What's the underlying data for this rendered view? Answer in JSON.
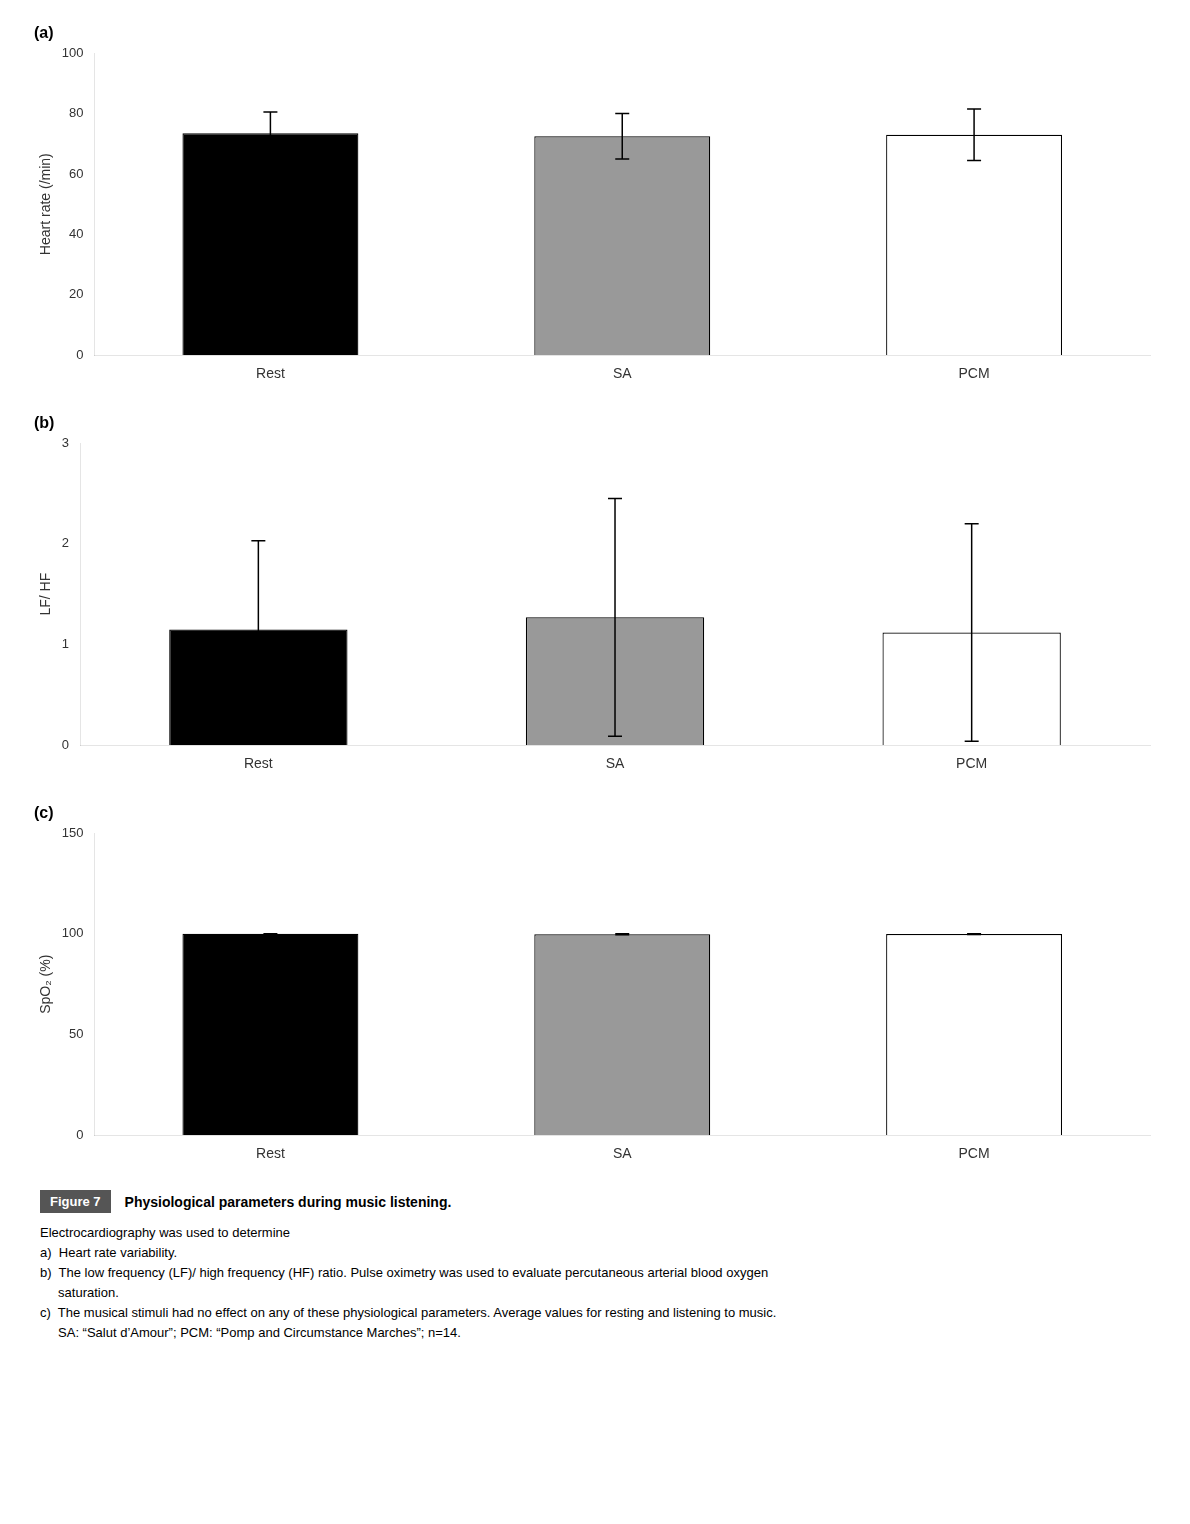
{
  "chart_data": [
    {
      "type": "bar",
      "title": "(a)",
      "categories": [
        "Rest",
        "SA",
        "PCM"
      ],
      "values": [
        73.5,
        72.5,
        73.0
      ],
      "errors": [
        7.0,
        7.5,
        8.5
      ],
      "colors": [
        "#000000",
        "#999999",
        "#ffffff"
      ],
      "ylabel": "Heart rate (/min)",
      "ylim": [
        0,
        100
      ],
      "yticks": [
        0,
        20,
        40,
        60,
        80,
        100
      ],
      "grid": false
    },
    {
      "type": "bar",
      "title": "(b)",
      "categories": [
        "Rest",
        "SA",
        "PCM"
      ],
      "values": [
        1.15,
        1.27,
        1.12
      ],
      "errors": [
        0.88,
        1.18,
        1.08
      ],
      "colors": [
        "#000000",
        "#999999",
        "#ffffff"
      ],
      "ylabel": "LF/ HF",
      "ylim": [
        0,
        3
      ],
      "yticks": [
        0,
        1,
        2,
        3
      ],
      "grid": false
    },
    {
      "type": "bar",
      "title": "(c)",
      "categories": [
        "Rest",
        "SA",
        "PCM"
      ],
      "values": [
        100.0,
        99.8,
        99.9
      ],
      "errors": [
        0.0,
        0.3,
        0.2
      ],
      "colors": [
        "#000000",
        "#999999",
        "#ffffff"
      ],
      "ylabel": "SpO₂ (%)",
      "ylim": [
        0,
        150
      ],
      "yticks": [
        0,
        50,
        100,
        150
      ],
      "grid": false
    }
  ],
  "figure_label": "Figure 7",
  "caption_title": "Physiological parameters during music listening.",
  "caption": [
    "Electrocardiography was used to determine",
    "a)  Heart rate variability.",
    "b)  The low frequency (LF)/ high frequency (HF) ratio. Pulse oximetry was used to evaluate percutaneous arterial blood oxygen",
    "     saturation.",
    "c)  The musical stimuli had no effect on any of these physiological parameters. Average values for resting and listening to music.",
    "     SA: “Salut d’Amour”; PCM: “Pomp and Circumstance Marches”; n=14."
  ]
}
